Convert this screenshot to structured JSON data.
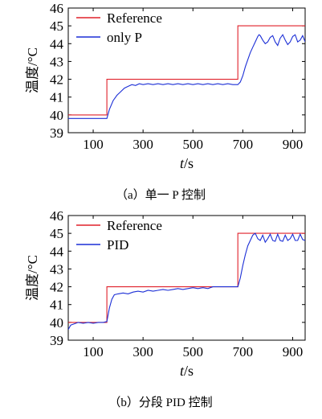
{
  "chart_data": [
    {
      "type": "line",
      "caption": "（a）单一 P 控制",
      "xlabel_italic": "t",
      "xlabel_unit": "/s",
      "ylabel": "温度/°C",
      "xlim": [
        0,
        950
      ],
      "ylim": [
        39,
        46
      ],
      "xticks": [
        100,
        300,
        500,
        700,
        900
      ],
      "yticks": [
        39,
        40,
        41,
        42,
        43,
        44,
        45,
        46
      ],
      "legend_position": "top-left",
      "series": [
        {
          "name": "Reference",
          "color": "#e0202a",
          "x": [
            0,
            155,
            155,
            680,
            680,
            950
          ],
          "y": [
            40,
            40,
            42,
            42,
            45,
            45
          ]
        },
        {
          "name": "only P",
          "color": "#1c2fd6",
          "x": [
            0,
            155,
            165,
            180,
            195,
            210,
            225,
            240,
            255,
            270,
            285,
            300,
            320,
            340,
            360,
            380,
            400,
            420,
            440,
            460,
            480,
            500,
            520,
            540,
            560,
            580,
            600,
            620,
            640,
            660,
            680,
            690,
            700,
            710,
            720,
            730,
            740,
            750,
            760,
            765,
            770,
            780,
            790,
            800,
            810,
            820,
            830,
            840,
            850,
            860,
            870,
            880,
            890,
            900,
            910,
            920,
            930,
            940,
            950
          ],
          "y": [
            39.8,
            39.8,
            40.3,
            40.8,
            41.1,
            41.3,
            41.5,
            41.6,
            41.7,
            41.65,
            41.75,
            41.7,
            41.75,
            41.7,
            41.75,
            41.7,
            41.75,
            41.7,
            41.75,
            41.7,
            41.75,
            41.7,
            41.75,
            41.7,
            41.75,
            41.7,
            41.75,
            41.7,
            41.75,
            41.7,
            41.7,
            41.85,
            42.2,
            42.7,
            43.1,
            43.5,
            43.8,
            44.1,
            44.4,
            44.5,
            44.45,
            44.2,
            44.0,
            44.1,
            44.35,
            44.45,
            44.1,
            43.9,
            44.3,
            44.5,
            44.2,
            43.95,
            44.1,
            44.4,
            44.5,
            44.1,
            44.2,
            44.45,
            44.1
          ]
        }
      ]
    },
    {
      "type": "line",
      "caption": "（b）分段 PID 控制",
      "xlabel_italic": "t",
      "xlabel_unit": "/s",
      "ylabel": "温度/°C",
      "xlim": [
        0,
        950
      ],
      "ylim": [
        39,
        46
      ],
      "xticks": [
        100,
        300,
        500,
        700,
        900
      ],
      "yticks": [
        39,
        40,
        41,
        42,
        43,
        44,
        45,
        46
      ],
      "legend_position": "top-left",
      "series": [
        {
          "name": "Reference",
          "color": "#e0202a",
          "x": [
            0,
            155,
            155,
            680,
            680,
            950
          ],
          "y": [
            40,
            40,
            42,
            42,
            45,
            45
          ]
        },
        {
          "name": "PID",
          "color": "#1c2fd6",
          "x": [
            0,
            10,
            20,
            40,
            60,
            80,
            100,
            120,
            140,
            155,
            165,
            175,
            185,
            200,
            220,
            240,
            260,
            280,
            300,
            320,
            340,
            360,
            380,
            400,
            420,
            440,
            460,
            480,
            500,
            520,
            540,
            560,
            580,
            600,
            620,
            640,
            660,
            680,
            690,
            700,
            710,
            720,
            730,
            740,
            750,
            760,
            770,
            780,
            790,
            800,
            810,
            820,
            830,
            840,
            850,
            860,
            870,
            880,
            890,
            900,
            910,
            920,
            930,
            940,
            950
          ],
          "y": [
            39.6,
            39.85,
            39.9,
            40.0,
            39.95,
            40.0,
            39.95,
            40.0,
            40.0,
            40.05,
            40.8,
            41.3,
            41.55,
            41.6,
            41.65,
            41.6,
            41.7,
            41.75,
            41.7,
            41.8,
            41.75,
            41.8,
            41.85,
            41.8,
            41.85,
            41.9,
            41.85,
            41.9,
            41.95,
            41.9,
            41.95,
            41.9,
            42.0,
            42.0,
            42.0,
            42.0,
            42.0,
            42.0,
            42.5,
            43.2,
            43.8,
            44.3,
            44.6,
            44.9,
            45.0,
            44.7,
            44.6,
            44.9,
            44.5,
            44.7,
            44.95,
            44.6,
            44.55,
            44.95,
            44.6,
            44.55,
            44.9,
            44.6,
            44.7,
            44.95,
            44.6,
            44.6,
            44.95,
            44.65,
            44.6
          ]
        }
      ]
    }
  ]
}
